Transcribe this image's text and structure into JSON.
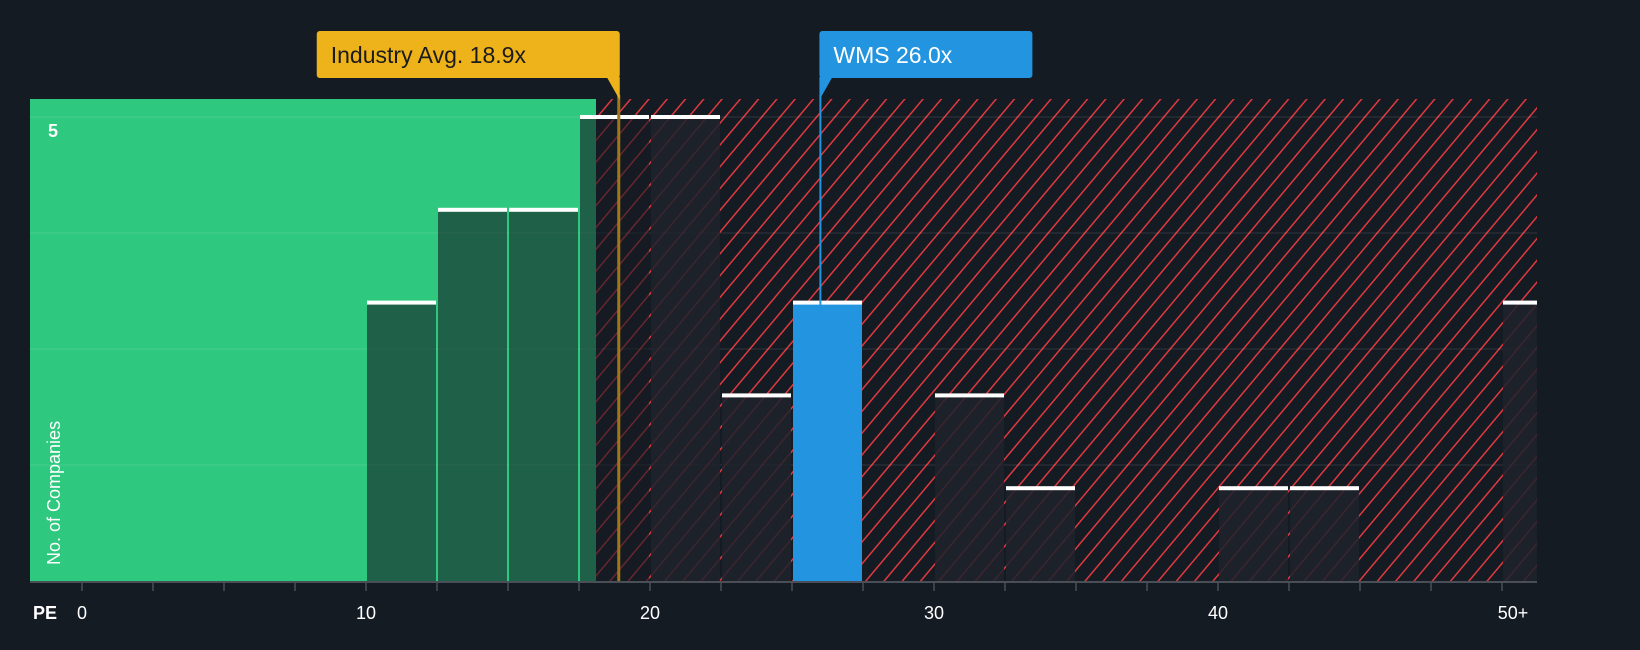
{
  "chart_data": {
    "type": "bar",
    "xlabel": "PE",
    "ylabel": "No. of Companies",
    "x_ticks": [
      "0",
      "10",
      "20",
      "30",
      "40",
      "50+"
    ],
    "x_tick_values": [
      0,
      10,
      20,
      30,
      40,
      50
    ],
    "y_ticks": [
      "5"
    ],
    "xlim": [
      0,
      51.5
    ],
    "ylim": [
      0,
      5.1
    ],
    "bin_width": 2.5,
    "bins": [
      {
        "start": 10,
        "value": 3
      },
      {
        "start": 12.5,
        "value": 4
      },
      {
        "start": 15,
        "value": 4
      },
      {
        "start": 17.5,
        "value": 5
      },
      {
        "start": 20,
        "value": 5
      },
      {
        "start": 22.5,
        "value": 2
      },
      {
        "start": 25,
        "value": 3,
        "highlight": true
      },
      {
        "start": 30,
        "value": 2
      },
      {
        "start": 32.5,
        "value": 1
      },
      {
        "start": 40,
        "value": 1
      },
      {
        "start": 42.5,
        "value": 1
      },
      {
        "start": 50,
        "value": 3
      }
    ],
    "fair_region_end": 18.1,
    "annotations": [
      {
        "label": "Industry Avg. 18.9x",
        "value": 18.9,
        "color": "#eeb31b"
      },
      {
        "label": "WMS 26.0x",
        "value": 26.0,
        "color": "#2394df"
      }
    ],
    "colors": {
      "background": "#151b23",
      "good_region": "#2ec97f",
      "bad_hatch": "#e0393e",
      "highlight_bar": "#2394df"
    },
    "grid": true
  }
}
